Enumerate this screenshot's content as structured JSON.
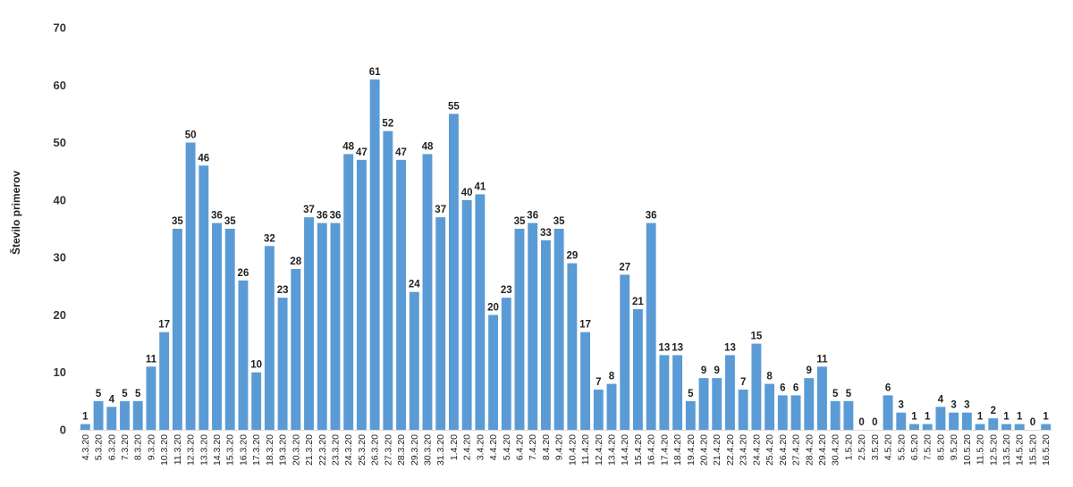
{
  "chart_data": {
    "type": "bar",
    "ylabel": "Število primerov",
    "ylim": [
      0,
      70
    ],
    "yticks": [
      0,
      10,
      20,
      30,
      40,
      50,
      60,
      70
    ],
    "grid": false,
    "bar_color": "#5B9BD5",
    "categories": [
      "4.3.20",
      "5.3.20",
      "6.3.20",
      "7.3.20",
      "8.3.20",
      "9.3.20",
      "10.3.20",
      "11.3.20",
      "12.3.20",
      "13.3.20",
      "14.3.20",
      "15.3.20",
      "16.3.20",
      "17.3.20",
      "18.3.20",
      "19.3.20",
      "20.3.20",
      "21.3.20",
      "22.3.20",
      "23.3.20",
      "24.3.20",
      "25.3.20",
      "26.3.20",
      "27.3.20",
      "28.3.20",
      "29.3.20",
      "30.3.20",
      "31.3.20",
      "1.4.20",
      "2.4.20",
      "3.4.20",
      "4.4.20",
      "5.4.20",
      "6.4.20",
      "7.4.20",
      "8.4.20",
      "9.4.20",
      "10.4.20",
      "11.4.20",
      "12.4.20",
      "13.4.20",
      "14.4.20",
      "15.4.20",
      "16.4.20",
      "17.4.20",
      "18.4.20",
      "19.4.20",
      "20.4.20",
      "21.4.20",
      "22.4.20",
      "23.4.20",
      "24.4.20",
      "25.4.20",
      "26.4.20",
      "27.4.20",
      "28.4.20",
      "29.4.20",
      "30.4.20",
      "1.5.20",
      "2.5.20",
      "3.5.20",
      "4.5.20",
      "5.5.20",
      "6.5.20",
      "7.5.20",
      "8.5.20",
      "9.5.20",
      "10.5.20",
      "11.5.20",
      "12.5.20",
      "13.5.20",
      "14.5.20",
      "15.5.20",
      "16.5.20"
    ],
    "values": [
      1,
      5,
      4,
      5,
      5,
      11,
      17,
      35,
      50,
      46,
      36,
      35,
      26,
      10,
      32,
      23,
      28,
      37,
      36,
      36,
      48,
      47,
      61,
      52,
      47,
      24,
      48,
      37,
      55,
      40,
      41,
      20,
      23,
      35,
      36,
      33,
      35,
      29,
      17,
      7,
      8,
      27,
      21,
      36,
      13,
      13,
      5,
      9,
      9,
      13,
      7,
      15,
      8,
      6,
      6,
      9,
      11,
      5,
      5,
      0,
      0,
      6,
      3,
      1,
      1,
      4,
      3,
      3,
      1,
      2,
      1,
      1,
      0,
      1
    ]
  }
}
